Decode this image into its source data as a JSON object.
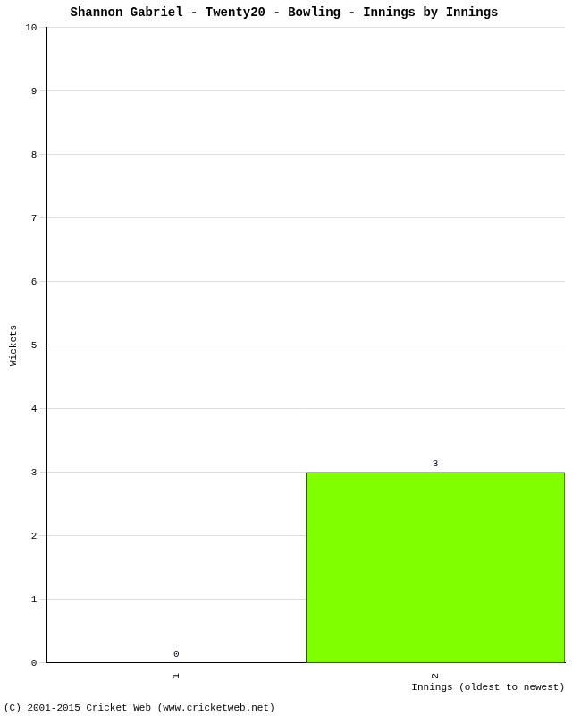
{
  "chart_data": {
    "type": "bar",
    "title": "Shannon Gabriel - Twenty20 - Bowling - Innings by Innings",
    "x_label": "Innings (oldest to newest)",
    "y_label": "Wickets",
    "annotations": [
      "(C) 2001-2015 Cricket Web (www.cricketweb.net)"
    ],
    "categories": [
      "1",
      "2"
    ],
    "values": [
      0,
      3
    ],
    "color": "#80ff00",
    "ylim": [
      0,
      10
    ],
    "yticks": [
      0,
      1,
      2,
      3,
      4,
      5,
      6,
      7,
      8,
      9,
      10
    ],
    "grid": true,
    "data_labels": true
  }
}
